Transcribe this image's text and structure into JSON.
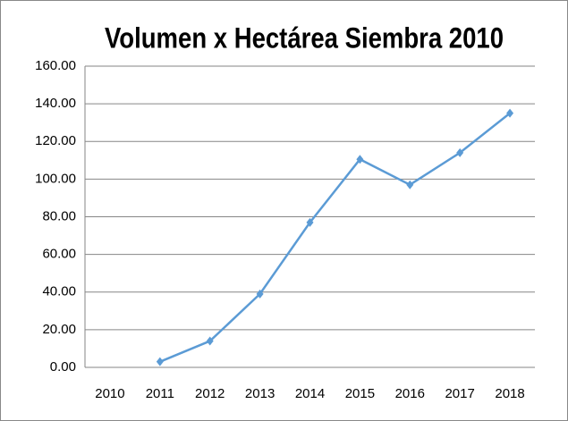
{
  "chart_data": {
    "type": "line",
    "title": "Volumen x Hectárea Siembra 2010",
    "categories": [
      "2010",
      "2011",
      "2012",
      "2013",
      "2014",
      "2015",
      "2016",
      "2017",
      "2018"
    ],
    "series": [
      {
        "name": "Volumen x Hectárea Siembra 2010",
        "color": "#5b9bd5",
        "values": [
          null,
          3,
          14,
          39,
          77,
          110.5,
          97,
          114,
          135
        ]
      }
    ],
    "ylim": [
      0,
      160
    ],
    "yticks": [
      {
        "value": 0,
        "label": "0.00"
      },
      {
        "value": 20,
        "label": "20.00"
      },
      {
        "value": 40,
        "label": "40.00"
      },
      {
        "value": 60,
        "label": "60.00"
      },
      {
        "value": 80,
        "label": "80.00"
      },
      {
        "value": 100,
        "label": "100.00"
      },
      {
        "value": 120,
        "label": "120.00"
      },
      {
        "value": 140,
        "label": "140.00"
      },
      {
        "value": 160,
        "label": "160.00"
      }
    ],
    "grid": true
  }
}
